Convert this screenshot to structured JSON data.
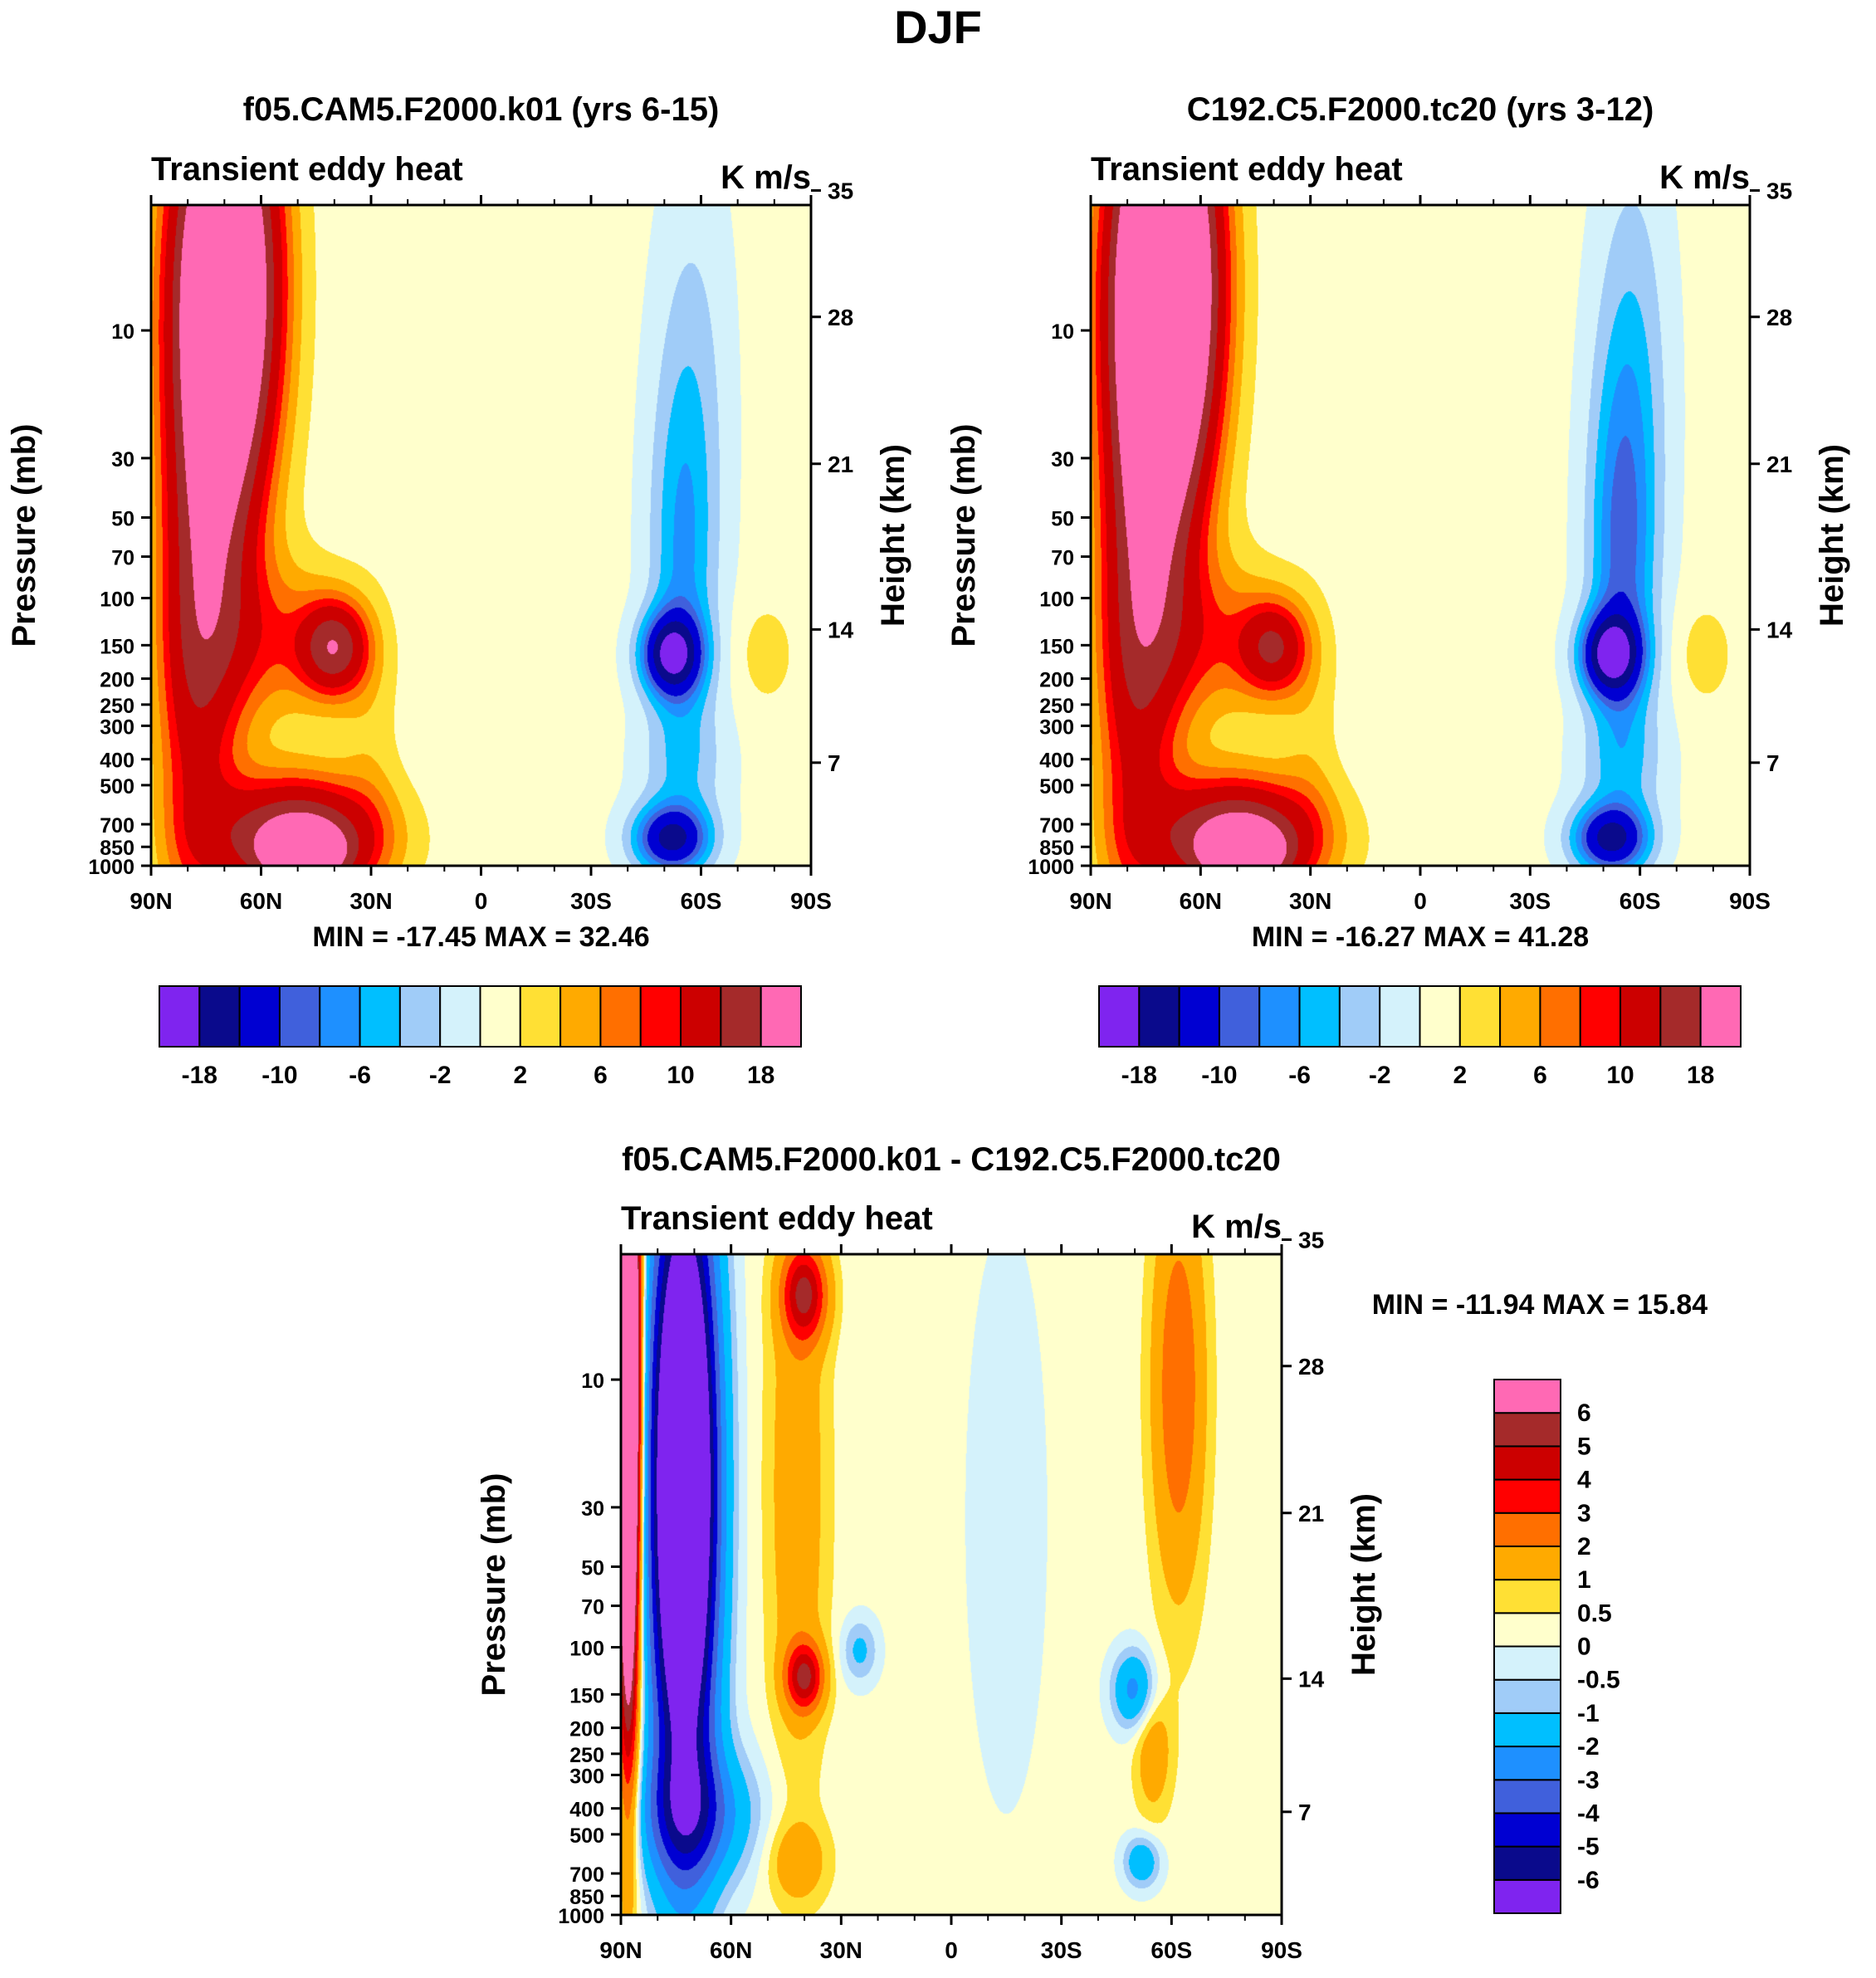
{
  "suptitle": "DJF",
  "colors": {
    "contours_main": [
      "#7f24ef",
      "#0a0a8c",
      "#0000d2",
      "#4060dc",
      "#1e90ff",
      "#00bfff",
      "#a0ccf8",
      "#d4f2fb",
      "#ffffcc",
      "#ffe034",
      "#ffaa00",
      "#ff6f00",
      "#ff0000",
      "#cc0000",
      "#a52a2a",
      "#ff69b4"
    ],
    "contours_diff": [
      "#7f24ef",
      "#0a0a8c",
      "#0000d2",
      "#4060dc",
      "#1e90ff",
      "#00bfff",
      "#a0ccf8",
      "#d4f2fb",
      "#ffffcc",
      "#ffe034",
      "#ffaa00",
      "#ff6f00",
      "#ff0000",
      "#cc0000",
      "#a52a2a",
      "#ff69b4"
    ]
  },
  "chart_data": [
    {
      "type": "contour",
      "title": "f05.CAM5.F2000.k01 (yrs 6-15)",
      "left_label": "Transient eddy heat",
      "right_label": "K m/s",
      "xlabel": "",
      "ylabel": "Pressure (mb)",
      "y2label": "Height (km)",
      "x_ticks": [
        "90N",
        "60N",
        "30N",
        "0",
        "30S",
        "60S",
        "90S"
      ],
      "y_ticks": [
        "10",
        "30",
        "50",
        "70",
        "100",
        "150",
        "200",
        "250",
        "300",
        "400",
        "500",
        "700",
        "850",
        "1000"
      ],
      "y2_ticks": [
        "35",
        "28",
        "21",
        "14",
        "7"
      ],
      "stats": "MIN = -17.45  MAX =  32.46",
      "levels": [
        "-18",
        "-10",
        "-6",
        "-2",
        "2",
        "6",
        "10",
        "18"
      ],
      "features": [
        {
          "lat": 68,
          "p": 20,
          "value": 32.46
        },
        {
          "lat": 40,
          "p": 160,
          "value": 14
        },
        {
          "lat": 50,
          "p": 800,
          "value": 20
        },
        {
          "lat": -52,
          "p": 180,
          "value": -17.45
        },
        {
          "lat": -52,
          "p": 820,
          "value": -14
        }
      ]
    },
    {
      "type": "contour",
      "title": "C192.C5.F2000.tc20 (yrs 3-12)",
      "left_label": "Transient eddy heat",
      "right_label": "K m/s",
      "xlabel": "",
      "ylabel": "Pressure (mb)",
      "y2label": "Height (km)",
      "x_ticks": [
        "90N",
        "60N",
        "30N",
        "0",
        "30S",
        "60S",
        "90S"
      ],
      "y_ticks": [
        "10",
        "30",
        "50",
        "70",
        "100",
        "150",
        "200",
        "250",
        "300",
        "400",
        "500",
        "700",
        "850",
        "1000"
      ],
      "y2_ticks": [
        "35",
        "28",
        "21",
        "14",
        "7"
      ],
      "stats": "MIN = -16.27  MAX =  41.28",
      "levels": [
        "-18",
        "-10",
        "-6",
        "-2",
        "2",
        "6",
        "10",
        "18"
      ],
      "features": [
        {
          "lat": 68,
          "p": 20,
          "value": 41.28
        },
        {
          "lat": 38,
          "p": 190,
          "value": 12
        },
        {
          "lat": 50,
          "p": 800,
          "value": 20
        },
        {
          "lat": -52,
          "p": 180,
          "value": -16.27
        },
        {
          "lat": -52,
          "p": 820,
          "value": -14
        }
      ]
    },
    {
      "type": "contour",
      "title": "f05.CAM5.F2000.k01 - C192.C5.F2000.tc20",
      "left_label": "Transient eddy heat",
      "right_label": "K m/s",
      "xlabel": "",
      "ylabel": "Pressure (mb)",
      "y2label": "Height (km)",
      "x_ticks": [
        "90N",
        "60N",
        "30N",
        "0",
        "30S",
        "60S",
        "90S"
      ],
      "y_ticks": [
        "10",
        "30",
        "50",
        "70",
        "100",
        "150",
        "200",
        "250",
        "300",
        "400",
        "500",
        "700",
        "850",
        "1000"
      ],
      "y2_ticks": [
        "35",
        "28",
        "21",
        "14",
        "7"
      ],
      "stats": "MIN = -11.94  MAX =  15.84",
      "levels": [
        "6",
        "5",
        "4",
        "3",
        "2",
        "1",
        "0.5",
        "0",
        "-0.5",
        "-1",
        "-2",
        "-3",
        "-4",
        "-5",
        "-6"
      ],
      "features": [
        {
          "lat": 72,
          "p": 40,
          "value": -11.94
        },
        {
          "lat": 40,
          "p": 6,
          "value": 4
        },
        {
          "lat": 40,
          "p": 150,
          "value": 4
        },
        {
          "lat": 25,
          "p": 105,
          "value": -1
        },
        {
          "lat": -50,
          "p": 160,
          "value": -2
        },
        {
          "lat": -60,
          "p": 15,
          "value": 2
        },
        {
          "lat": 88,
          "p": 10,
          "value": 15.84
        }
      ]
    }
  ]
}
